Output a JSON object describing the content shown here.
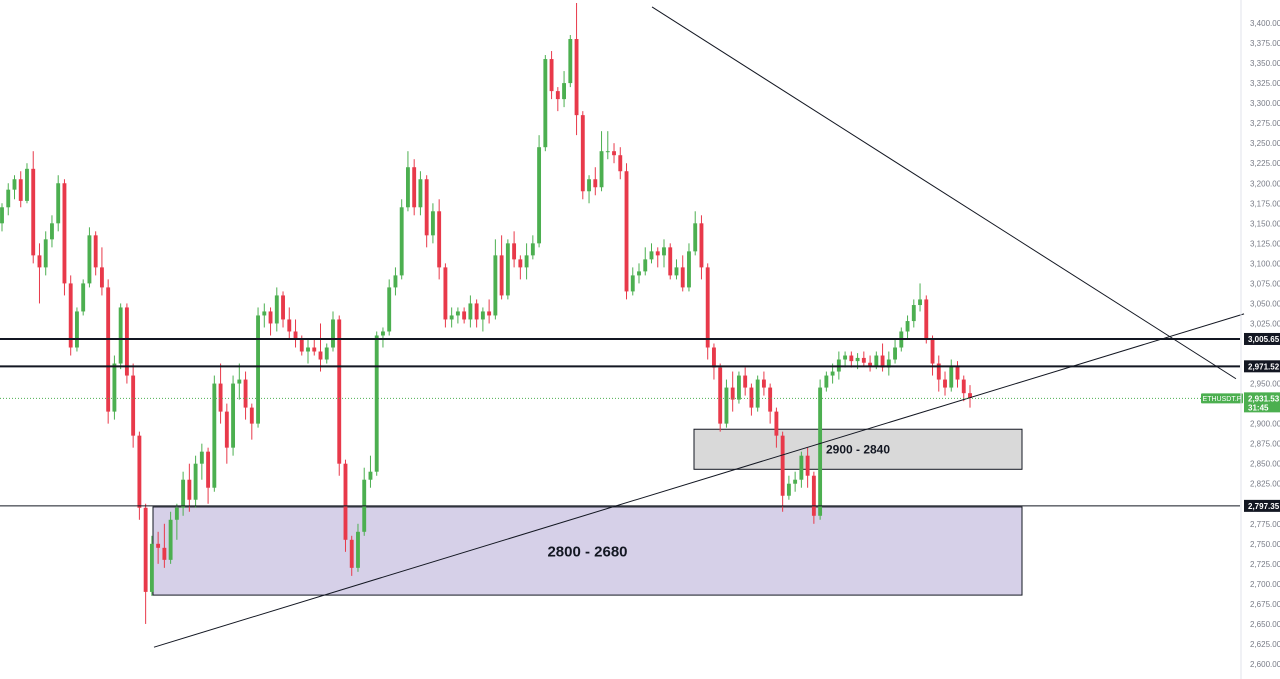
{
  "chart_data": {
    "type": "candlestick",
    "symbol": "ETHUSDT.P",
    "last_price": "2,931.53",
    "countdown": "31:45",
    "ylim": [
      2595,
      3425
    ],
    "y_ticks": [
      "3,400.00",
      "3,375.00",
      "3,350.00",
      "3,325.00",
      "3,300.00",
      "3,275.00",
      "3,250.00",
      "3,225.00",
      "3,200.00",
      "3,175.00",
      "3,150.00",
      "3,125.00",
      "3,100.00",
      "3,075.00",
      "3,050.00",
      "3,025.00",
      "2,950.00",
      "2,900.00",
      "2,875.00",
      "2,850.00",
      "2,825.00",
      "2,775.00",
      "2,750.00",
      "2,725.00",
      "2,700.00",
      "2,675.00",
      "2,650.00",
      "2,625.00",
      "2,600.00"
    ],
    "horizontal_levels": [
      {
        "value": 3005.65,
        "label": "3,005.65",
        "style": "thick"
      },
      {
        "value": 2971.52,
        "label": "2,971.52",
        "style": "thick"
      },
      {
        "value": 2797.35,
        "label": "2,797.35",
        "style": "thin"
      }
    ],
    "zones": [
      {
        "label": "2900 - 2840",
        "top": 2893,
        "bottom": 2843,
        "fill": "#d9d9d9"
      },
      {
        "label": "2800 - 2680",
        "top": 2796,
        "bottom": 2686,
        "fill": "#d6d0e8"
      }
    ],
    "trendlines": [
      {
        "name": "descending-resistance",
        "from": [
          0.5094,
          3420
        ],
        "to": [
          0.9656,
          2956
        ]
      },
      {
        "name": "ascending-support",
        "from": [
          0.1203,
          2621
        ],
        "to": [
          0.9719,
          3037
        ]
      }
    ],
    "candles": [
      [
        3150,
        3175,
        3140,
        3170
      ],
      [
        3170,
        3200,
        3160,
        3192
      ],
      [
        3192,
        3210,
        3180,
        3205
      ],
      [
        3205,
        3215,
        3170,
        3178
      ],
      [
        3178,
        3225,
        3175,
        3218
      ],
      [
        3218,
        3240,
        3100,
        3110
      ],
      [
        3110,
        3125,
        3050,
        3095
      ],
      [
        3095,
        3140,
        3085,
        3130
      ],
      [
        3130,
        3160,
        3120,
        3150
      ],
      [
        3150,
        3210,
        3140,
        3200
      ],
      [
        3200,
        3205,
        3060,
        3075
      ],
      [
        3075,
        3085,
        2985,
        2995
      ],
      [
        2995,
        3045,
        2990,
        3040
      ],
      [
        3040,
        3080,
        3035,
        3075
      ],
      [
        3075,
        3145,
        3070,
        3135
      ],
      [
        3135,
        3140,
        3085,
        3095
      ],
      [
        3095,
        3120,
        3060,
        3070
      ],
      [
        3070,
        3080,
        2900,
        2915
      ],
      [
        2915,
        2985,
        2905,
        2975
      ],
      [
        2975,
        3050,
        2968,
        3045
      ],
      [
        3045,
        3050,
        2950,
        2960
      ],
      [
        2960,
        2975,
        2870,
        2885
      ],
      [
        2885,
        2890,
        2780,
        2795
      ],
      [
        2795,
        2800,
        2650,
        2690
      ],
      [
        2690,
        2760,
        2685,
        2750
      ],
      [
        2750,
        2765,
        2725,
        2745
      ],
      [
        2745,
        2775,
        2720,
        2730
      ],
      [
        2730,
        2790,
        2725,
        2780
      ],
      [
        2780,
        2800,
        2755,
        2795
      ],
      [
        2795,
        2840,
        2785,
        2830
      ],
      [
        2830,
        2850,
        2790,
        2805
      ],
      [
        2805,
        2860,
        2795,
        2850
      ],
      [
        2850,
        2875,
        2830,
        2865
      ],
      [
        2865,
        2870,
        2800,
        2820
      ],
      [
        2820,
        2960,
        2815,
        2950
      ],
      [
        2950,
        2975,
        2900,
        2915
      ],
      [
        2915,
        2925,
        2850,
        2870
      ],
      [
        2870,
        2960,
        2860,
        2950
      ],
      [
        2950,
        2975,
        2930,
        2955
      ],
      [
        2955,
        2965,
        2905,
        2920
      ],
      [
        2920,
        2925,
        2880,
        2900
      ],
      [
        2900,
        3045,
        2895,
        3035
      ],
      [
        3035,
        3050,
        3020,
        3040
      ],
      [
        3040,
        3045,
        3010,
        3025
      ],
      [
        3025,
        3070,
        3015,
        3060
      ],
      [
        3060,
        3065,
        3020,
        3030
      ],
      [
        3030,
        3045,
        3005,
        3015
      ],
      [
        3015,
        3030,
        2995,
        3005
      ],
      [
        3005,
        3010,
        2985,
        2990
      ],
      [
        2990,
        3005,
        2975,
        2995
      ],
      [
        2995,
        3005,
        2985,
        2990
      ],
      [
        2990,
        3025,
        2965,
        2980
      ],
      [
        2980,
        3000,
        2975,
        2995
      ],
      [
        2995,
        3040,
        2990,
        3030
      ],
      [
        3030,
        3035,
        2835,
        2850
      ],
      [
        2850,
        2855,
        2740,
        2755
      ],
      [
        2755,
        2760,
        2710,
        2720
      ],
      [
        2720,
        2775,
        2715,
        2765
      ],
      [
        2765,
        2845,
        2760,
        2830
      ],
      [
        2830,
        2860,
        2820,
        2840
      ],
      [
        2840,
        3015,
        2835,
        3010
      ],
      [
        3010,
        3020,
        2995,
        3015
      ],
      [
        3015,
        3080,
        3010,
        3070
      ],
      [
        3070,
        3095,
        3060,
        3085
      ],
      [
        3085,
        3180,
        3080,
        3170
      ],
      [
        3170,
        3240,
        3165,
        3220
      ],
      [
        3220,
        3230,
        3160,
        3170
      ],
      [
        3170,
        3215,
        3160,
        3205
      ],
      [
        3205,
        3210,
        3120,
        3135
      ],
      [
        3135,
        3175,
        3125,
        3165
      ],
      [
        3165,
        3180,
        3080,
        3095
      ],
      [
        3095,
        3100,
        3020,
        3030
      ],
      [
        3030,
        3045,
        3020,
        3035
      ],
      [
        3035,
        3045,
        3025,
        3040
      ],
      [
        3040,
        3045,
        3025,
        3030
      ],
      [
        3030,
        3060,
        3020,
        3050
      ],
      [
        3050,
        3055,
        3020,
        3030
      ],
      [
        3030,
        3045,
        3015,
        3040
      ],
      [
        3040,
        3055,
        3025,
        3035
      ],
      [
        3035,
        3130,
        3030,
        3110
      ],
      [
        3110,
        3135,
        3055,
        3060
      ],
      [
        3060,
        3130,
        3055,
        3125
      ],
      [
        3125,
        3140,
        3095,
        3105
      ],
      [
        3105,
        3110,
        3080,
        3095
      ],
      [
        3095,
        3125,
        3080,
        3110
      ],
      [
        3110,
        3135,
        3105,
        3125
      ],
      [
        3125,
        3260,
        3120,
        3245
      ],
      [
        3245,
        3360,
        3240,
        3355
      ],
      [
        3355,
        3365,
        3305,
        3315
      ],
      [
        3315,
        3320,
        3290,
        3305
      ],
      [
        3305,
        3340,
        3295,
        3325
      ],
      [
        3325,
        3385,
        3320,
        3380
      ],
      [
        3380,
        3425,
        3260,
        3285
      ],
      [
        3285,
        3290,
        3180,
        3190
      ],
      [
        3190,
        3210,
        3175,
        3205
      ],
      [
        3205,
        3220,
        3185,
        3195
      ],
      [
        3195,
        3265,
        3190,
        3240
      ],
      [
        3240,
        3265,
        3230,
        3240
      ],
      [
        3240,
        3250,
        3225,
        3235
      ],
      [
        3235,
        3245,
        3205,
        3215
      ],
      [
        3215,
        3225,
        3055,
        3065
      ],
      [
        3065,
        3095,
        3060,
        3085
      ],
      [
        3085,
        3100,
        3075,
        3090
      ],
      [
        3090,
        3120,
        3085,
        3105
      ],
      [
        3105,
        3125,
        3100,
        3115
      ],
      [
        3115,
        3120,
        3095,
        3110
      ],
      [
        3110,
        3130,
        3095,
        3120
      ],
      [
        3120,
        3125,
        3080,
        3085
      ],
      [
        3085,
        3105,
        3080,
        3095
      ],
      [
        3095,
        3110,
        3065,
        3070
      ],
      [
        3070,
        3125,
        3065,
        3115
      ],
      [
        3115,
        3165,
        3110,
        3150
      ],
      [
        3150,
        3160,
        3080,
        3095
      ],
      [
        3095,
        3100,
        2980,
        2995
      ],
      [
        2995,
        3000,
        2955,
        2970
      ],
      [
        2970,
        2975,
        2890,
        2900
      ],
      [
        2900,
        2955,
        2895,
        2945
      ],
      [
        2945,
        2965,
        2915,
        2930
      ],
      [
        2930,
        2965,
        2925,
        2960
      ],
      [
        2960,
        2970,
        2935,
        2945
      ],
      [
        2945,
        2950,
        2910,
        2920
      ],
      [
        2920,
        2960,
        2915,
        2955
      ],
      [
        2955,
        2965,
        2935,
        2945
      ],
      [
        2945,
        2950,
        2900,
        2915
      ],
      [
        2915,
        2920,
        2870,
        2885
      ],
      [
        2885,
        2890,
        2790,
        2810
      ],
      [
        2810,
        2835,
        2805,
        2825
      ],
      [
        2825,
        2840,
        2815,
        2830
      ],
      [
        2830,
        2865,
        2820,
        2860
      ],
      [
        2860,
        2870,
        2820,
        2835
      ],
      [
        2835,
        2840,
        2775,
        2785
      ],
      [
        2785,
        2955,
        2780,
        2945
      ],
      [
        2945,
        2965,
        2940,
        2960
      ],
      [
        2960,
        2975,
        2950,
        2965
      ],
      [
        2965,
        2990,
        2955,
        2980
      ],
      [
        2980,
        2990,
        2970,
        2985
      ],
      [
        2985,
        2990,
        2970,
        2978
      ],
      [
        2978,
        2988,
        2968,
        2982
      ],
      [
        2982,
        2990,
        2972,
        2976
      ],
      [
        2976,
        2985,
        2965,
        2972
      ],
      [
        2972,
        2990,
        2968,
        2985
      ],
      [
        2985,
        3000,
        2965,
        2970
      ],
      [
        2970,
        2990,
        2960,
        2980
      ],
      [
        2980,
        3005,
        2975,
        2995
      ],
      [
        2995,
        3020,
        2990,
        3015
      ],
      [
        3015,
        3035,
        3005,
        3028
      ],
      [
        3028,
        3055,
        3020,
        3048
      ],
      [
        3048,
        3075,
        3040,
        3055
      ],
      [
        3055,
        3060,
        3000,
        3005
      ],
      [
        3005,
        3010,
        2960,
        2975
      ],
      [
        2975,
        2985,
        2940,
        2955
      ],
      [
        2955,
        2965,
        2935,
        2945
      ],
      [
        2945,
        2980,
        2940,
        2972
      ],
      [
        2972,
        2978,
        2945,
        2955
      ],
      [
        2955,
        2960,
        2928,
        2938
      ],
      [
        2938,
        2948,
        2920,
        2932
      ]
    ]
  },
  "colors": {
    "up": "#4caf50",
    "down": "#e8394a",
    "axis_text": "#787b86",
    "level_label_bg": "#131722",
    "last_price_bg": "#4caf50"
  }
}
